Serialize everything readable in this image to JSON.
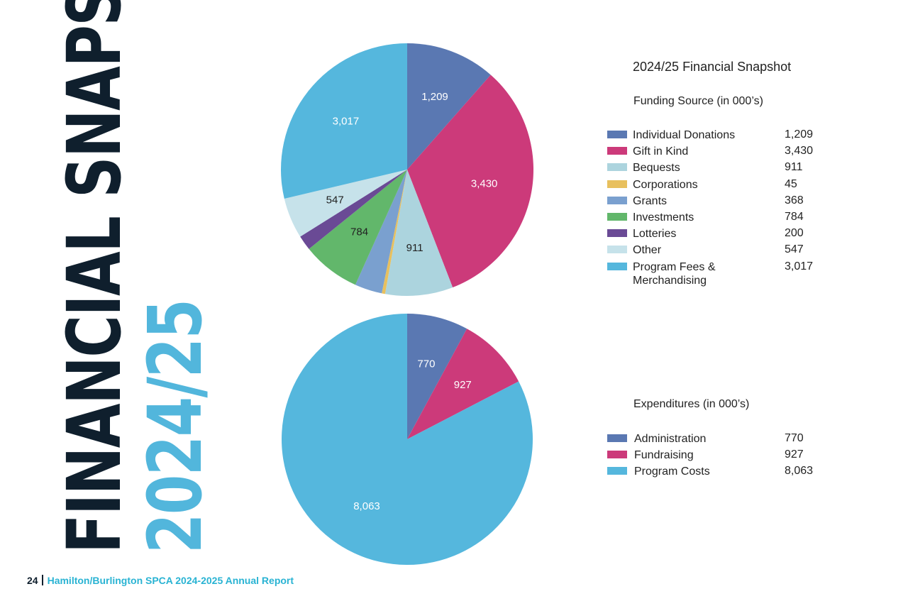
{
  "page": {
    "vertical_title": "FINANCIAL SNAPSHOT",
    "vertical_year": "2024/25",
    "snapshot_title": "2024/25 Financial Snapshot",
    "footer_page": "24",
    "footer_text": "Hamilton/Burlington SPCA 2024-2025 Annual Report"
  },
  "colors": {
    "individual_donations": "#5a78b2",
    "gift_in_kind": "#cc3a7a",
    "bequests": "#acd4de",
    "corporations": "#e8c05e",
    "grants": "#7aa0cf",
    "investments": "#62b76b",
    "lotteries": "#6a4a95",
    "other": "#c6e2ea",
    "program": "#55b7dd"
  },
  "chart_data": [
    {
      "type": "pie",
      "title": "Funding Source (in 000’s)",
      "categories": [
        "Individual Donations",
        "Gift in Kind",
        "Bequests",
        "Corporations",
        "Grants",
        "Investments",
        "Lotteries",
        "Other",
        "Program Fees & Merchandising"
      ],
      "display_values": [
        "1,209",
        "3,430",
        "911",
        "45",
        "368",
        "784",
        "200",
        "547",
        "3,017"
      ],
      "values": [
        1209,
        3430,
        911,
        45,
        368,
        784,
        200,
        547,
        3017
      ],
      "slice_labels": [
        "1,209",
        "3,430",
        "911",
        "",
        "",
        "784",
        "",
        "547",
        "3,017"
      ],
      "colors": [
        "#5a78b2",
        "#cc3a7a",
        "#acd4de",
        "#e8c05e",
        "#7aa0cf",
        "#62b76b",
        "#6a4a95",
        "#c6e2ea",
        "#55b7dd"
      ],
      "label_colors": [
        "#ffffff",
        "#ffffff",
        "#222222",
        "",
        "",
        "#222222",
        "",
        "#222222",
        "#ffffff"
      ],
      "legend": "right",
      "start": "12 o'clock, clockwise"
    },
    {
      "type": "pie",
      "title": "Expenditures (in 000’s)",
      "categories": [
        "Administration",
        "Fundraising",
        "Program Costs"
      ],
      "display_values": [
        "770",
        "927",
        "8,063"
      ],
      "values": [
        770,
        927,
        8063
      ],
      "slice_labels": [
        "770",
        "927",
        "8,063"
      ],
      "colors": [
        "#5a78b2",
        "#cc3a7a",
        "#55b7dd"
      ],
      "label_colors": [
        "#ffffff",
        "#ffffff",
        "#ffffff"
      ],
      "legend": "right",
      "start": "12 o'clock, clockwise"
    }
  ]
}
